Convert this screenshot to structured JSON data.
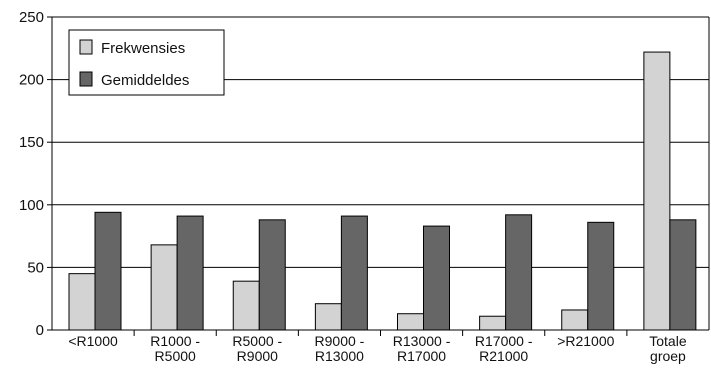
{
  "chart_data": {
    "type": "bar",
    "title": "",
    "xlabel": "",
    "ylabel": "",
    "ylim": [
      0,
      250
    ],
    "yticks": [
      0,
      50,
      100,
      150,
      200,
      250
    ],
    "grid": "horizontal",
    "legend_position": "top-left",
    "categories": [
      [
        "<R1000"
      ],
      [
        "R1000 -",
        "R5000"
      ],
      [
        "R5000 -",
        "R9000"
      ],
      [
        "R9000 -",
        "R13000"
      ],
      [
        "R13000 -",
        "R17000"
      ],
      [
        "R17000 -",
        "R21000"
      ],
      [
        ">R21000"
      ],
      [
        "Totale",
        "groep"
      ]
    ],
    "series": [
      {
        "name": "Frekwensies",
        "color": "#d3d3d3",
        "values": [
          45,
          68,
          39,
          21,
          13,
          11,
          16,
          222
        ]
      },
      {
        "name": "Gemiddeldes",
        "color": "#666666",
        "values": [
          94,
          91,
          88,
          91,
          83,
          92,
          86,
          88
        ]
      }
    ]
  }
}
